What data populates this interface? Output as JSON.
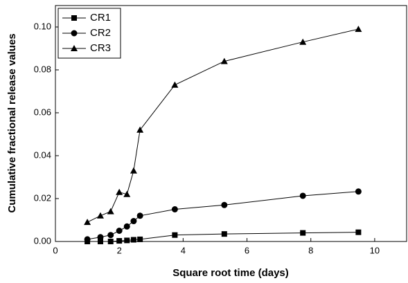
{
  "chart_data": {
    "type": "line",
    "x_label": "Square root time (days)",
    "y_label": "Cumulative fractional release values",
    "x": [
      1,
      1.41,
      1.73,
      2,
      2.24,
      2.45,
      2.65,
      3.74,
      5.29,
      7.75,
      9.49
    ],
    "series": [
      {
        "name": "CR1",
        "color": "#000000",
        "marker": "square",
        "values": [
          0,
          0,
          0,
          0.0003,
          0.0005,
          0.0008,
          0.001,
          0.003,
          0.0035,
          0.004,
          0.0043
        ]
      },
      {
        "name": "CR2",
        "color": "#000000",
        "marker": "circle",
        "values": [
          0.001,
          0.002,
          0.003,
          0.005,
          0.007,
          0.0095,
          0.012,
          0.015,
          0.017,
          0.0213,
          0.0233
        ]
      },
      {
        "name": "CR3",
        "color": "#000000",
        "marker": "triangle",
        "values": [
          0.009,
          0.012,
          0.014,
          0.023,
          0.022,
          0.033,
          0.052,
          0.073,
          0.084,
          0.093,
          0.099
        ]
      }
    ],
    "xlim": [
      0,
      11
    ],
    "xticks": [
      0,
      2,
      4,
      6,
      8,
      10
    ],
    "ylim": [
      0,
      0.11
    ],
    "yticks": [
      {
        "value": 0,
        "label": "0.00"
      },
      {
        "value": 0.02,
        "label": "0.02"
      },
      {
        "value": 0.04,
        "label": "0.04"
      },
      {
        "value": 0.06,
        "label": "0.06"
      },
      {
        "value": 0.08,
        "label": "0.08"
      },
      {
        "value": 0.1,
        "label": "0.10"
      }
    ],
    "legend": "top-left"
  }
}
